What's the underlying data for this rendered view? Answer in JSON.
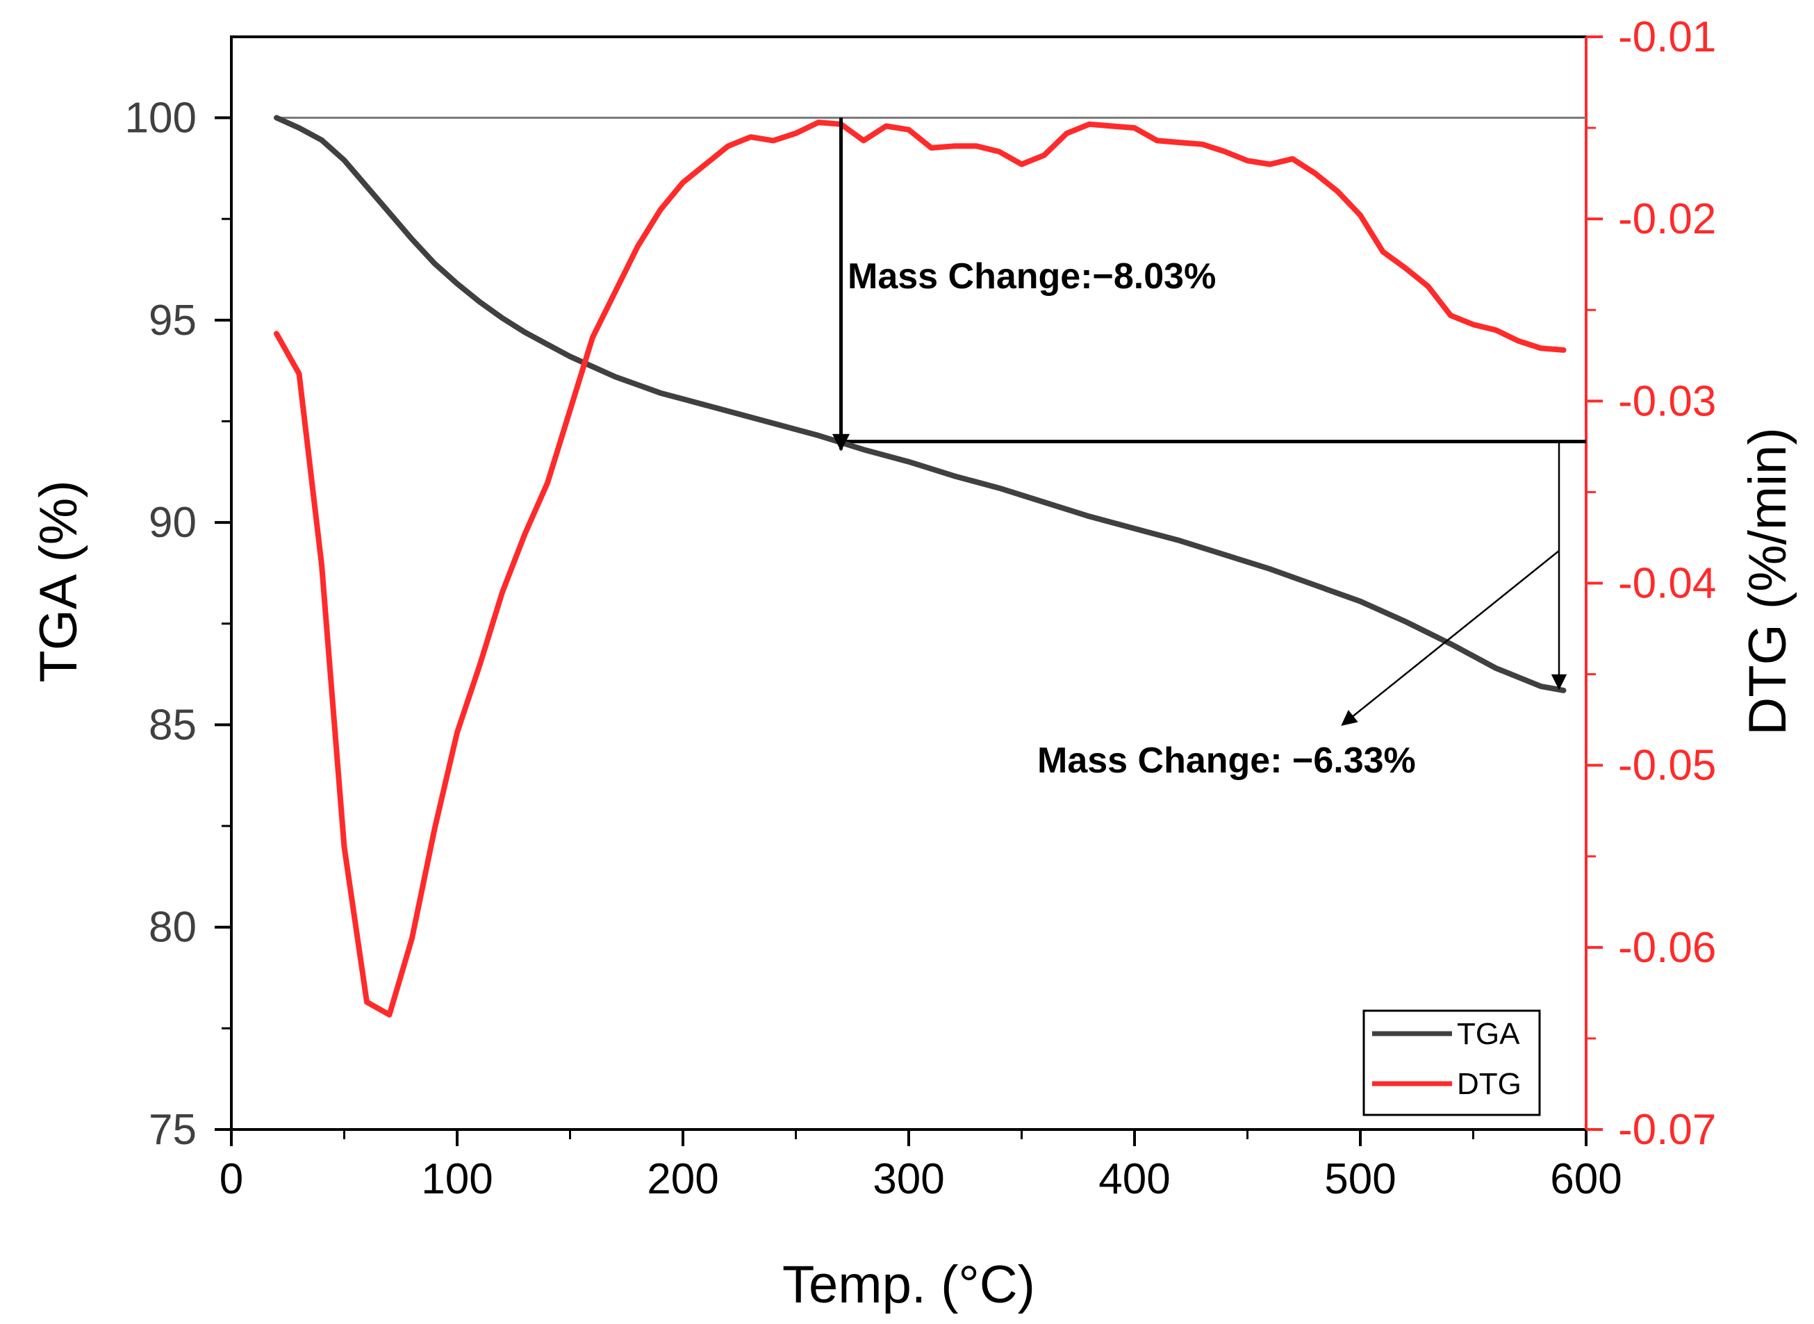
{
  "chart_data": {
    "type": "line",
    "title": "",
    "xlabel": "Temp. (°C)",
    "ylabel": "TGA (%)",
    "y2label": "DTG (%/min)",
    "xlim": [
      0,
      600
    ],
    "ylim": [
      75,
      102
    ],
    "y2lim": [
      -0.07,
      -0.01
    ],
    "x_ticks": [
      0,
      100,
      200,
      300,
      400,
      500,
      600
    ],
    "y_ticks": [
      75,
      80,
      85,
      90,
      95,
      100
    ],
    "y2_ticks": [
      -0.07,
      -0.06,
      -0.05,
      -0.04,
      -0.03,
      -0.02,
      -0.01
    ],
    "x_tick_labels": [
      "0",
      "100",
      "200",
      "300",
      "400",
      "500",
      "600"
    ],
    "y_tick_labels": [
      "75",
      "80",
      "85",
      "90",
      "95",
      "100"
    ],
    "y2_tick_labels": [
      "-0.07",
      "-0.06",
      "-0.05",
      "-0.04",
      "-0.03",
      "-0.02",
      "-0.01"
    ],
    "grid": false,
    "legend_position": "bottom-right",
    "series": [
      {
        "name": "TGA",
        "axis": "left",
        "color": "#404040",
        "x": [
          20,
          30,
          40,
          50,
          60,
          70,
          80,
          90,
          100,
          110,
          120,
          130,
          140,
          150,
          160,
          170,
          180,
          190,
          200,
          220,
          240,
          260,
          280,
          300,
          320,
          340,
          360,
          380,
          400,
          420,
          440,
          460,
          480,
          500,
          520,
          540,
          560,
          580,
          590
        ],
        "values": [
          100.0,
          99.75,
          99.45,
          98.95,
          98.3,
          97.65,
          97.0,
          96.4,
          95.9,
          95.45,
          95.05,
          94.7,
          94.4,
          94.1,
          93.85,
          93.6,
          93.4,
          93.2,
          93.05,
          92.75,
          92.45,
          92.15,
          91.8,
          91.5,
          91.15,
          90.85,
          90.5,
          90.15,
          89.85,
          89.55,
          89.2,
          88.85,
          88.45,
          88.05,
          87.55,
          87.0,
          86.4,
          85.95,
          85.85
        ]
      },
      {
        "name": "DTG",
        "axis": "right",
        "color": "#ff2a2a",
        "x": [
          20,
          30,
          40,
          50,
          60,
          70,
          80,
          90,
          100,
          110,
          120,
          130,
          140,
          150,
          160,
          170,
          180,
          190,
          200,
          210,
          220,
          230,
          240,
          250,
          260,
          270,
          280,
          290,
          300,
          310,
          320,
          330,
          340,
          350,
          360,
          370,
          380,
          390,
          400,
          410,
          420,
          430,
          440,
          450,
          460,
          470,
          480,
          490,
          500,
          510,
          520,
          530,
          540,
          550,
          560,
          570,
          580,
          590
        ],
        "values": [
          -0.0263,
          -0.0285,
          -0.039,
          -0.0545,
          -0.063,
          -0.0637,
          -0.0595,
          -0.0535,
          -0.0482,
          -0.0445,
          -0.0405,
          -0.0373,
          -0.0345,
          -0.0305,
          -0.0265,
          -0.024,
          -0.0215,
          -0.0195,
          -0.018,
          -0.017,
          -0.016,
          -0.0155,
          -0.0157,
          -0.0153,
          -0.0147,
          -0.0148,
          -0.0157,
          -0.0149,
          -0.0151,
          -0.0161,
          -0.016,
          -0.016,
          -0.0163,
          -0.017,
          -0.0165,
          -0.0153,
          -0.0148,
          -0.0149,
          -0.015,
          -0.0157,
          -0.0158,
          -0.0159,
          -0.0163,
          -0.0168,
          -0.017,
          -0.0167,
          -0.0175,
          -0.0185,
          -0.0198,
          -0.0218,
          -0.0227,
          -0.0237,
          -0.0253,
          -0.0258,
          -0.0261,
          -0.0267,
          -0.0271,
          -0.0272
        ]
      }
    ],
    "annotations": [
      {
        "text": "Mass Change:−8.03%",
        "x": 270,
        "y": 97.3
      },
      {
        "text": "Mass Change: −6.33%",
        "x": 360,
        "y": 83.2
      }
    ],
    "reference_lines": [
      {
        "name": "initial-mass-line",
        "y": 100.0,
        "x_from": 20,
        "x_to": 600
      },
      {
        "name": "intermediate-mass-line",
        "y": 92.0,
        "x_from": 270,
        "x_to": 600
      }
    ],
    "arrows": [
      {
        "name": "mass-change-1-arrow",
        "from": [
          270,
          100.0
        ],
        "to": [
          270,
          91.8
        ]
      },
      {
        "name": "mass-change-2-arrow",
        "from": [
          588,
          92.0
        ],
        "to": [
          588,
          85.9
        ]
      },
      {
        "name": "annotation-leader-arrow",
        "from": [
          588,
          89.3
        ],
        "to": [
          492,
          85.0
        ]
      }
    ]
  }
}
